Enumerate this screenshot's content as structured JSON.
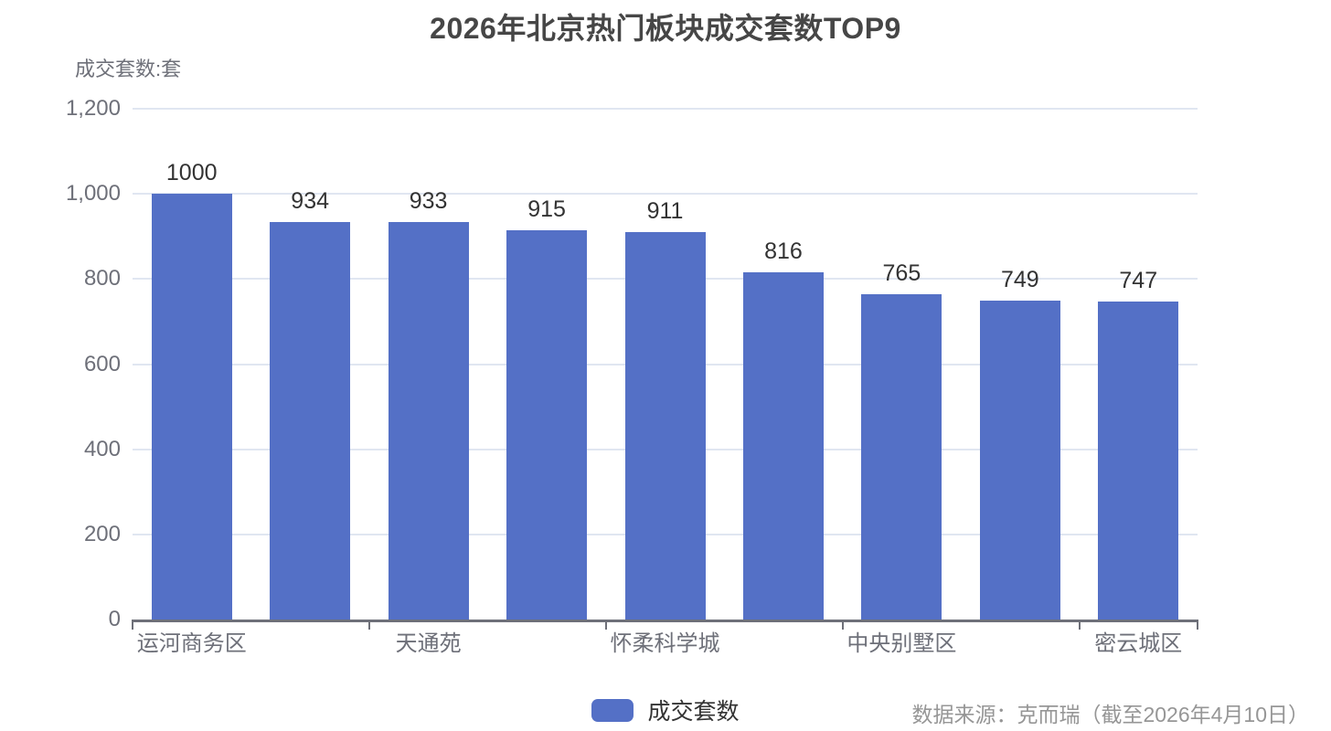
{
  "chart_data": {
    "type": "bar",
    "title": "2026年北京热门板块成交套数TOP9",
    "ylabel": "成交套数:套",
    "xlabel": "",
    "legend": [
      "成交套数"
    ],
    "legend_position": "bottom-center",
    "source": "数据来源：克而瑞（截至2026年4月10日）",
    "n_bars": 9,
    "series": [
      {
        "name": "成交套数",
        "values": [
          1000,
          934,
          933,
          915,
          911,
          816,
          765,
          749,
          747
        ],
        "value_labels": [
          "1000",
          "934",
          "933",
          "915",
          "911",
          "816",
          "765",
          "749",
          "747"
        ],
        "color": "#5470c6"
      }
    ],
    "x_tick_labels": [
      {
        "slot": 0,
        "label": "运河商务区"
      },
      {
        "slot": 2,
        "label": "天通苑"
      },
      {
        "slot": 4,
        "label": "怀柔科学城"
      },
      {
        "slot": 6,
        "label": "中央别墅区"
      },
      {
        "slot": 8,
        "label": "密云城区"
      }
    ],
    "ylim": [
      0,
      1200
    ],
    "yticks": [
      {
        "value": 0,
        "label": "0"
      },
      {
        "value": 200,
        "label": "200"
      },
      {
        "value": 400,
        "label": "400"
      },
      {
        "value": 600,
        "label": "600"
      },
      {
        "value": 800,
        "label": "800"
      },
      {
        "value": 1000,
        "label": "1,000"
      },
      {
        "value": 1200,
        "label": "1,200"
      }
    ],
    "grid": true,
    "colors": {
      "bar": "#5470c6",
      "gridline": "#e0e6f1",
      "axis_line": "#6e7079",
      "axis_text": "#6e7079",
      "value_label": "#333333",
      "title": "#464646",
      "legend_text": "#333333",
      "source_text": "#969696",
      "background": "#ffffff"
    }
  }
}
